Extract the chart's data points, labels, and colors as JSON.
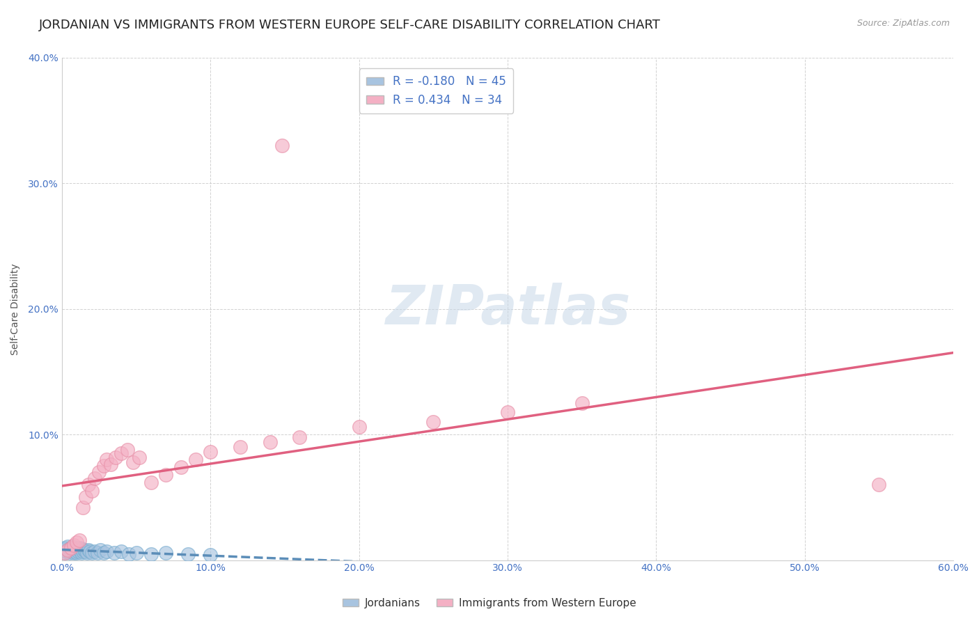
{
  "title": "JORDANIAN VS IMMIGRANTS FROM WESTERN EUROPE SELF-CARE DISABILITY CORRELATION CHART",
  "source": "Source: ZipAtlas.com",
  "ylabel": "Self-Care Disability",
  "xlim": [
    0.0,
    0.6
  ],
  "ylim": [
    0.0,
    0.4
  ],
  "xticks": [
    0.0,
    0.1,
    0.2,
    0.3,
    0.4,
    0.5,
    0.6
  ],
  "yticks": [
    0.0,
    0.1,
    0.2,
    0.3,
    0.4
  ],
  "group1_label": "Jordanians",
  "group1_color": "#a8c4e0",
  "group1_edge_color": "#7aaed0",
  "group1_line_color": "#5b8db8",
  "group1_R": -0.18,
  "group1_N": 45,
  "group2_label": "Immigrants from Western Europe",
  "group2_color": "#f4b0c4",
  "group2_edge_color": "#e890a8",
  "group2_line_color": "#e06080",
  "group2_R": 0.434,
  "group2_N": 34,
  "background_color": "#ffffff",
  "grid_color": "#cccccc",
  "title_fontsize": 13,
  "tick_fontsize": 10,
  "watermark_color": "#c8d8e8",
  "jordanians_x": [
    0.001,
    0.002,
    0.002,
    0.003,
    0.003,
    0.004,
    0.004,
    0.005,
    0.005,
    0.006,
    0.006,
    0.007,
    0.007,
    0.008,
    0.008,
    0.009,
    0.009,
    0.01,
    0.01,
    0.011,
    0.011,
    0.012,
    0.012,
    0.013,
    0.013,
    0.014,
    0.015,
    0.016,
    0.017,
    0.018,
    0.019,
    0.02,
    0.022,
    0.024,
    0.026,
    0.028,
    0.03,
    0.035,
    0.04,
    0.045,
    0.05,
    0.06,
    0.07,
    0.085,
    0.1
  ],
  "jordanians_y": [
    0.008,
    0.006,
    0.01,
    0.007,
    0.009,
    0.008,
    0.011,
    0.006,
    0.009,
    0.007,
    0.01,
    0.008,
    0.011,
    0.006,
    0.009,
    0.007,
    0.01,
    0.008,
    0.006,
    0.009,
    0.007,
    0.01,
    0.008,
    0.006,
    0.009,
    0.007,
    0.008,
    0.007,
    0.006,
    0.008,
    0.007,
    0.006,
    0.007,
    0.006,
    0.008,
    0.006,
    0.007,
    0.006,
    0.007,
    0.005,
    0.006,
    0.005,
    0.006,
    0.005,
    0.004
  ],
  "western_europe_x": [
    0.002,
    0.004,
    0.006,
    0.008,
    0.01,
    0.012,
    0.014,
    0.016,
    0.018,
    0.02,
    0.022,
    0.025,
    0.028,
    0.03,
    0.033,
    0.036,
    0.04,
    0.044,
    0.048,
    0.052,
    0.06,
    0.07,
    0.08,
    0.09,
    0.1,
    0.12,
    0.14,
    0.16,
    0.2,
    0.25,
    0.3,
    0.35,
    0.55,
    0.148
  ],
  "western_europe_y": [
    0.006,
    0.008,
    0.01,
    0.012,
    0.014,
    0.016,
    0.042,
    0.05,
    0.06,
    0.055,
    0.065,
    0.07,
    0.075,
    0.08,
    0.076,
    0.082,
    0.085,
    0.088,
    0.078,
    0.082,
    0.062,
    0.068,
    0.074,
    0.08,
    0.086,
    0.09,
    0.094,
    0.098,
    0.106,
    0.11,
    0.118,
    0.125,
    0.06,
    0.33
  ]
}
